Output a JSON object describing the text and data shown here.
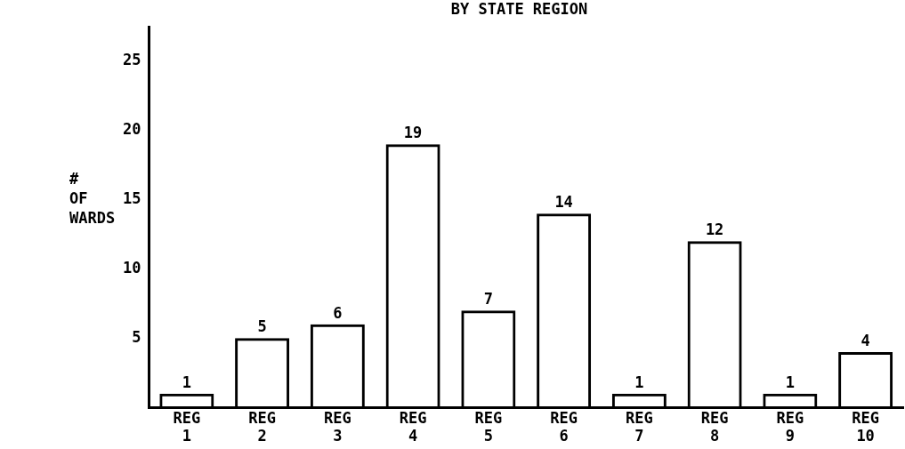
{
  "chart_data": {
    "type": "bar",
    "title": "BY STATE REGION",
    "ylabel": "# OF WARDS",
    "categories": [
      "REG 1",
      "REG 2",
      "REG 3",
      "REG 4",
      "REG 5",
      "REG 6",
      "REG 7",
      "REG 8",
      "REG 9",
      "REG 10"
    ],
    "values": [
      1,
      5,
      6,
      19,
      7,
      14,
      1,
      12,
      1,
      4
    ],
    "color": "#000000",
    "ylim": [
      0,
      27.5
    ],
    "yticks": [
      5,
      10,
      15,
      20,
      25
    ],
    "grid": false,
    "legend": false,
    "data_labels": true
  }
}
